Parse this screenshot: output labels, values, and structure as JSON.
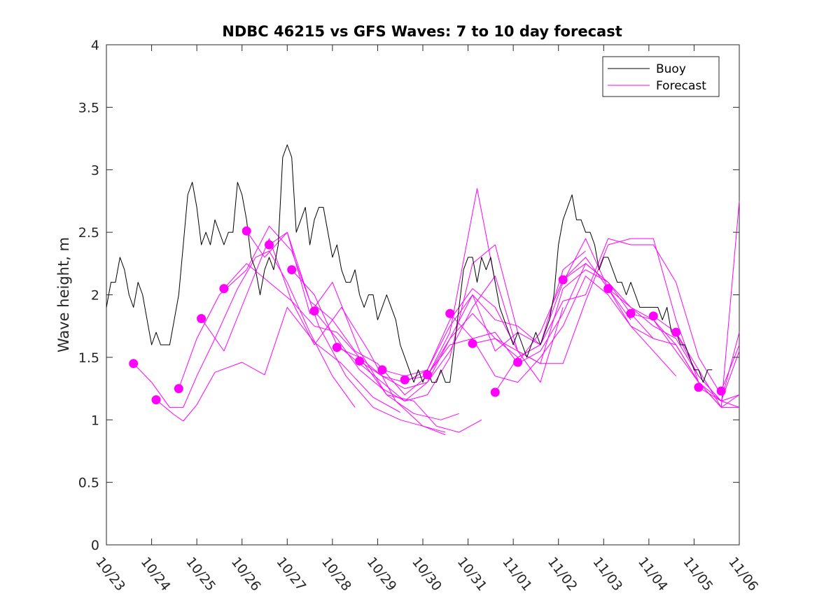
{
  "chart_data": {
    "type": "line",
    "title": "NDBC 46215 vs GFS Waves: 7 to 10 day forecast",
    "xlabel": "",
    "ylabel": "Wave height, m",
    "xlim": [
      0,
      14
    ],
    "ylim": [
      0,
      4
    ],
    "yticks": [
      0,
      0.5,
      1,
      1.5,
      2,
      2.5,
      3,
      3.5,
      4
    ],
    "ytick_labels": [
      "0",
      "0.5",
      "1",
      "1.5",
      "2",
      "2.5",
      "3",
      "3.5",
      "4"
    ],
    "xticks": [
      0,
      1,
      2,
      3,
      4,
      5,
      6,
      7,
      8,
      9,
      10,
      11,
      12,
      13,
      14
    ],
    "xtick_labels": [
      "10/23",
      "10/24",
      "10/25",
      "10/26",
      "10/27",
      "10/28",
      "10/29",
      "10/30",
      "10/31",
      "11/01",
      "11/02",
      "11/03",
      "11/04",
      "11/05",
      "11/06"
    ],
    "x_units": "days since 10/23",
    "legend": {
      "position": "top-right",
      "entries": [
        "Buoy",
        "Forecast"
      ]
    },
    "colors": {
      "buoy": "#000000",
      "forecast": "#ff00ff",
      "axes": "#262626"
    },
    "series": [
      {
        "name": "Buoy",
        "color": "#000000",
        "x": [
          0,
          0.1,
          0.2,
          0.3,
          0.4,
          0.5,
          0.6,
          0.7,
          0.8,
          0.9,
          1.0,
          1.1,
          1.2,
          1.3,
          1.4,
          1.5,
          1.6,
          1.7,
          1.8,
          1.9,
          2.0,
          2.1,
          2.2,
          2.3,
          2.4,
          2.5,
          2.6,
          2.7,
          2.8,
          2.9,
          3.0,
          3.1,
          3.2,
          3.3,
          3.4,
          3.5,
          3.6,
          3.7,
          3.8,
          3.9,
          4.0,
          4.1,
          4.2,
          4.3,
          4.4,
          4.5,
          4.6,
          4.7,
          4.8,
          4.9,
          5.0,
          5.1,
          5.2,
          5.3,
          5.4,
          5.5,
          5.6,
          5.7,
          5.8,
          5.9,
          6.0,
          6.1,
          6.2,
          6.3,
          6.4,
          6.5,
          6.6,
          6.7,
          6.8,
          6.9,
          7.0,
          7.1,
          7.2,
          7.3,
          7.4,
          7.5,
          7.6,
          7.7,
          7.8,
          7.9,
          8.0,
          8.1,
          8.2,
          8.3,
          8.4,
          8.5,
          8.6,
          8.7,
          8.8,
          8.9,
          9.0,
          9.1,
          9.2,
          9.3,
          9.4,
          9.5,
          9.6,
          9.7,
          9.8,
          9.9,
          10.0,
          10.1,
          10.2,
          10.3,
          10.4,
          10.5,
          10.6,
          10.7,
          10.8,
          10.9,
          11.0,
          11.1,
          11.2,
          11.3,
          11.4,
          11.5,
          11.6,
          11.7,
          11.8,
          11.9,
          12.0,
          12.1,
          12.2,
          12.3,
          12.4,
          12.5,
          12.6,
          12.7,
          12.8,
          12.9,
          13.0,
          13.1,
          13.2,
          13.3,
          13.4
        ],
        "values": [
          1.9,
          2.1,
          2.1,
          2.3,
          2.2,
          2.0,
          1.9,
          2.1,
          2.0,
          1.8,
          1.6,
          1.7,
          1.6,
          1.6,
          1.6,
          1.8,
          2.0,
          2.4,
          2.8,
          2.9,
          2.7,
          2.4,
          2.5,
          2.4,
          2.6,
          2.5,
          2.4,
          2.5,
          2.5,
          2.9,
          2.8,
          2.6,
          2.3,
          2.2,
          2.0,
          2.2,
          2.3,
          2.2,
          2.4,
          3.1,
          3.2,
          3.1,
          2.5,
          2.6,
          2.7,
          2.4,
          2.6,
          2.7,
          2.7,
          2.5,
          2.3,
          2.4,
          2.2,
          2.1,
          2.1,
          2.2,
          2.0,
          1.9,
          2.0,
          2.0,
          1.8,
          1.9,
          2.0,
          1.9,
          1.8,
          1.6,
          1.5,
          1.4,
          1.3,
          1.4,
          1.3,
          1.4,
          1.3,
          1.3,
          1.4,
          1.3,
          1.3,
          1.6,
          1.9,
          2.2,
          2.3,
          2.3,
          2.1,
          2.3,
          2.2,
          2.3,
          2.1,
          1.9,
          1.8,
          1.7,
          1.6,
          1.7,
          1.6,
          1.5,
          1.6,
          1.7,
          1.6,
          1.7,
          1.8,
          2.0,
          2.4,
          2.6,
          2.7,
          2.8,
          2.6,
          2.6,
          2.5,
          2.5,
          2.4,
          2.2,
          2.3,
          2.3,
          2.2,
          2.1,
          2.1,
          2.0,
          2.1,
          2.0,
          1.9,
          1.9,
          1.9,
          1.9,
          1.9,
          1.8,
          1.9,
          1.7,
          1.7,
          1.6,
          1.6,
          1.5,
          1.4,
          1.4,
          1.3,
          1.4,
          1.4
        ]
      },
      {
        "name": "Forecast run 1",
        "color": "#ff00ff",
        "x": [
          0.6,
          1.0,
          1.4,
          1.7,
          2.0,
          2.4,
          2.9,
          3.3,
          3.6,
          4.0,
          4.5,
          5.0,
          5.5
        ],
        "values": [
          1.45,
          1.3,
          1.1,
          1.1,
          1.35,
          1.65,
          2.05,
          2.3,
          2.35,
          2.1,
          1.7,
          1.35,
          1.1
        ]
      },
      {
        "name": "Forecast run 2",
        "color": "#ff00ff",
        "x": [
          1.1,
          1.5,
          1.7,
          2.0,
          2.4,
          3.0,
          3.5,
          4.0,
          4.6,
          5.2,
          5.9,
          6.5
        ],
        "values": [
          1.16,
          1.04,
          0.99,
          1.12,
          1.38,
          1.46,
          1.36,
          1.9,
          1.62,
          1.45,
          1.18,
          1.06
        ]
      },
      {
        "name": "Forecast run 3",
        "color": "#ff00ff",
        "x": [
          1.6,
          2.0,
          2.5,
          3.1,
          3.6,
          4.1,
          4.7,
          5.3,
          5.9,
          6.5,
          7.0,
          7.5
        ],
        "values": [
          1.25,
          1.65,
          2.0,
          2.2,
          2.55,
          2.35,
          1.75,
          1.35,
          1.1,
          1.0,
          0.95,
          0.88
        ]
      },
      {
        "name": "Forecast run 4",
        "color": "#ff00ff",
        "x": [
          2.1,
          2.6,
          3.1,
          3.6,
          4.1,
          4.6,
          5.2,
          5.8,
          6.4,
          7.0,
          7.5
        ],
        "values": [
          1.81,
          1.55,
          2.0,
          2.45,
          1.95,
          1.6,
          1.9,
          1.55,
          1.15,
          0.95,
          0.9
        ]
      },
      {
        "name": "Forecast run 5",
        "color": "#ff00ff",
        "x": [
          2.6,
          3.1,
          3.6,
          4.1,
          4.6,
          5.1,
          5.6,
          6.2,
          6.8,
          7.4,
          7.8
        ],
        "values": [
          2.05,
          2.25,
          2.1,
          1.95,
          1.75,
          1.7,
          1.5,
          1.2,
          1.05,
          1.0,
          1.05
        ]
      },
      {
        "name": "Forecast run 6",
        "color": "#ff00ff",
        "x": [
          3.1,
          3.5,
          4.0,
          4.5,
          5.0,
          5.6,
          6.2,
          6.8,
          7.3,
          7.8,
          8.3
        ],
        "values": [
          2.51,
          2.3,
          2.5,
          1.85,
          2.1,
          1.55,
          1.2,
          1.15,
          0.95,
          0.9,
          1.0
        ]
      },
      {
        "name": "Forecast run 7",
        "color": "#ff00ff",
        "x": [
          3.6,
          4.0,
          4.5,
          5.0,
          5.5,
          6.0,
          6.6,
          7.1,
          7.6,
          8.2,
          8.6
        ],
        "values": [
          2.4,
          2.5,
          1.95,
          1.8,
          1.55,
          1.45,
          1.2,
          1.35,
          1.7,
          2.85,
          2.1
        ]
      },
      {
        "name": "Forecast run 8",
        "color": "#ff00ff",
        "x": [
          4.1,
          4.6,
          5.1,
          5.6,
          6.1,
          6.6,
          7.1,
          7.6,
          8.1,
          8.6,
          9.1
        ],
        "values": [
          2.2,
          2.0,
          1.6,
          1.45,
          1.3,
          1.15,
          1.2,
          1.5,
          2.25,
          2.4,
          1.7
        ]
      },
      {
        "name": "Forecast run 9",
        "color": "#ff00ff",
        "x": [
          4.6,
          5.1,
          5.6,
          6.1,
          6.6,
          7.1,
          7.6,
          8.1,
          8.6,
          9.1,
          9.6
        ],
        "values": [
          1.87,
          1.65,
          1.4,
          1.25,
          1.15,
          1.3,
          1.65,
          2.0,
          1.55,
          1.7,
          1.6
        ]
      },
      {
        "name": "Forecast run 10",
        "color": "#ff00ff",
        "x": [
          5.1,
          5.6,
          6.1,
          6.6,
          7.1,
          7.6,
          8.1,
          8.6,
          9.1,
          9.6,
          10.1
        ],
        "values": [
          1.58,
          1.5,
          1.35,
          1.25,
          1.3,
          1.55,
          1.9,
          2.15,
          1.55,
          1.3,
          1.9
        ]
      },
      {
        "name": "Forecast run 11",
        "color": "#ff00ff",
        "x": [
          5.6,
          6.1,
          6.6,
          7.1,
          7.6,
          8.1,
          8.6,
          9.1,
          9.6,
          10.1,
          10.6
        ],
        "values": [
          1.47,
          1.35,
          1.3,
          1.4,
          1.75,
          2.0,
          1.8,
          1.75,
          1.6,
          2.2,
          2.35
        ]
      },
      {
        "name": "Forecast run 12",
        "color": "#ff00ff",
        "x": [
          6.1,
          6.6,
          7.1,
          7.6,
          8.1,
          8.6,
          9.1,
          9.6,
          10.1,
          10.6,
          11.1
        ],
        "values": [
          1.4,
          1.35,
          1.4,
          1.8,
          2.05,
          1.9,
          1.55,
          1.45,
          2.05,
          2.2,
          2.1
        ]
      },
      {
        "name": "Forecast run 13",
        "color": "#ff00ff",
        "x": [
          6.6,
          7.1,
          7.6,
          8.1,
          8.6,
          9.1,
          9.6,
          10.1,
          10.6,
          11.1,
          11.6
        ],
        "values": [
          1.32,
          1.35,
          1.65,
          1.85,
          1.65,
          1.5,
          1.6,
          2.1,
          2.45,
          2.05,
          1.8
        ]
      },
      {
        "name": "Forecast run 14",
        "color": "#ff00ff",
        "x": [
          7.1,
          7.6,
          8.1,
          8.6,
          9.1,
          9.6,
          10.1,
          10.6,
          11.1,
          11.6,
          12.1
        ],
        "values": [
          1.36,
          1.6,
          1.65,
          1.7,
          1.45,
          1.55,
          1.85,
          2.25,
          2.1,
          1.85,
          1.65
        ]
      },
      {
        "name": "Forecast run 15",
        "color": "#ff00ff",
        "x": [
          7.6,
          8.1,
          8.6,
          9.1,
          9.6,
          10.1,
          10.6,
          11.1,
          11.6,
          12.1,
          12.6
        ],
        "values": [
          1.85,
          1.65,
          1.35,
          1.3,
          1.5,
          1.75,
          2.15,
          2.0,
          1.75,
          1.55,
          1.35
        ]
      },
      {
        "name": "Forecast run 16",
        "color": "#ff00ff",
        "x": [
          8.1,
          8.6,
          9.1,
          9.6,
          10.1,
          10.6,
          11.1,
          11.6,
          12.1,
          12.6,
          13.1
        ],
        "values": [
          1.61,
          1.65,
          1.55,
          1.45,
          1.45,
          1.95,
          2.4,
          2.45,
          2.45,
          1.8,
          1.3
        ]
      },
      {
        "name": "Forecast run 17",
        "color": "#ff00ff",
        "x": [
          8.6,
          9.1,
          9.6,
          10.1,
          10.6,
          11.1,
          11.6,
          12.1,
          12.6,
          13.1,
          13.6
        ],
        "values": [
          1.22,
          1.5,
          1.6,
          1.95,
          2.0,
          2.45,
          2.4,
          2.4,
          2.1,
          1.5,
          1.2
        ]
      },
      {
        "name": "Forecast run 18",
        "color": "#ff00ff",
        "x": [
          9.1,
          9.6,
          10.1,
          10.6,
          11.1,
          11.6,
          12.1,
          12.6,
          13.1,
          13.6,
          14.0
        ],
        "values": [
          1.46,
          1.7,
          2.12,
          2.25,
          2.1,
          1.9,
          1.75,
          1.65,
          1.35,
          1.15,
          1.1
        ]
      },
      {
        "name": "Forecast run 19",
        "color": "#ff00ff",
        "x": [
          10.1,
          10.6,
          11.1,
          11.6,
          12.1,
          12.6,
          13.1,
          13.6,
          14.0
        ],
        "values": [
          2.12,
          2.3,
          2.05,
          1.75,
          1.65,
          1.6,
          1.3,
          1.1,
          1.2
        ]
      },
      {
        "name": "Forecast run 20",
        "color": "#ff00ff",
        "x": [
          11.1,
          11.6,
          12.1,
          12.6,
          13.1,
          13.6,
          14.0
        ],
        "values": [
          2.05,
          1.9,
          1.8,
          1.55,
          1.3,
          1.15,
          1.55
        ]
      },
      {
        "name": "Forecast run 21",
        "color": "#ff00ff",
        "x": [
          11.6,
          12.1,
          12.6,
          13.1,
          13.6,
          14.0
        ],
        "values": [
          1.85,
          1.8,
          1.6,
          1.3,
          1.1,
          2.75
        ]
      },
      {
        "name": "Forecast run 22",
        "color": "#ff00ff",
        "x": [
          12.1,
          12.6,
          13.1,
          13.6,
          14.0
        ],
        "values": [
          1.83,
          1.7,
          1.35,
          1.15,
          1.7
        ]
      },
      {
        "name": "Forecast run 23",
        "color": "#ff00ff",
        "x": [
          12.6,
          13.1,
          13.6,
          14.0
        ],
        "values": [
          1.7,
          1.4,
          1.1,
          1.1
        ]
      },
      {
        "name": "Forecast run 24",
        "color": "#ff00ff",
        "x": [
          13.1,
          13.6,
          14.0
        ],
        "values": [
          1.26,
          1.15,
          1.2
        ]
      },
      {
        "name": "Forecast run 25",
        "color": "#ff00ff",
        "x": [
          13.6,
          14.0
        ],
        "values": [
          1.23,
          1.6
        ]
      }
    ],
    "forecast_markers": {
      "color": "#ff00ff",
      "x": [
        0.6,
        1.1,
        1.6,
        2.1,
        2.6,
        3.1,
        3.6,
        4.1,
        4.6,
        5.1,
        5.6,
        6.1,
        6.6,
        7.1,
        7.6,
        8.1,
        8.6,
        9.1,
        10.1,
        11.1,
        11.6,
        12.1,
        12.6,
        13.1,
        13.6
      ],
      "values": [
        1.45,
        1.16,
        1.25,
        1.81,
        2.05,
        2.51,
        2.4,
        2.2,
        1.87,
        1.58,
        1.47,
        1.4,
        1.32,
        1.36,
        1.85,
        1.61,
        1.22,
        1.46,
        2.12,
        2.05,
        1.85,
        1.83,
        1.7,
        1.26,
        1.23
      ]
    }
  }
}
